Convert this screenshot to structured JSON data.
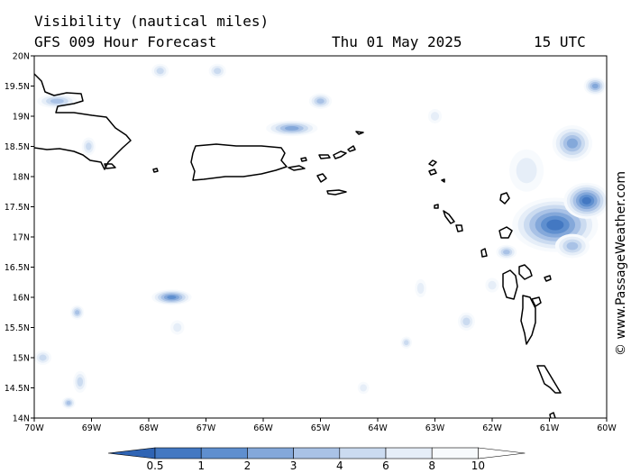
{
  "header": {
    "title": "Visibility (nautical miles)",
    "subtitle": "GFS 009 Hour Forecast",
    "date": "Thu 01 May 2025",
    "time": "15 UTC"
  },
  "credit": "© www.PassageWeather.com",
  "axes": {
    "lat_labels": [
      "20N",
      "19.5N",
      "19N",
      "18.5N",
      "18N",
      "17.5N",
      "17N",
      "16.5N",
      "16N",
      "15.5N",
      "15N",
      "14.5N",
      "14N"
    ],
    "lon_labels": [
      "70W",
      "69W",
      "68W",
      "67W",
      "66W",
      "65W",
      "64W",
      "63W",
      "62W",
      "61W",
      "60W"
    ],
    "lat_range": [
      14,
      20
    ],
    "lon_range": [
      -70,
      -60
    ]
  },
  "legend": {
    "labels": [
      "0.5",
      "1",
      "2",
      "3",
      "4",
      "6",
      "8",
      "10"
    ],
    "colors": [
      "#2f64b4",
      "#4378c2",
      "#5f8fcf",
      "#84a8da",
      "#a9c2e6",
      "#cbdbf0",
      "#e6eef8",
      "#f7fafd",
      "#ffffff"
    ]
  },
  "visibility_areas": [
    {
      "lon": -60.9,
      "lat": 17.2,
      "rx": 0.75,
      "ry": 0.45,
      "level": 1
    },
    {
      "lon": -60.35,
      "lat": 17.6,
      "rx": 0.4,
      "ry": 0.3,
      "level": 1
    },
    {
      "lon": -60.6,
      "lat": 18.55,
      "rx": 0.35,
      "ry": 0.3,
      "level": 3
    },
    {
      "lon": -60.2,
      "lat": 19.5,
      "rx": 0.2,
      "ry": 0.15,
      "level": 3
    },
    {
      "lon": -65.5,
      "lat": 18.8,
      "rx": 0.45,
      "ry": 0.13,
      "level": 3
    },
    {
      "lon": -65.0,
      "lat": 19.25,
      "rx": 0.2,
      "ry": 0.13,
      "level": 4
    },
    {
      "lon": -67.6,
      "lat": 16.0,
      "rx": 0.35,
      "ry": 0.13,
      "level": 2
    },
    {
      "lon": -61.75,
      "lat": 16.75,
      "rx": 0.18,
      "ry": 0.12,
      "level": 4
    },
    {
      "lon": -62.45,
      "lat": 15.6,
      "rx": 0.15,
      "ry": 0.15,
      "level": 5
    },
    {
      "lon": -69.25,
      "lat": 15.75,
      "rx": 0.12,
      "ry": 0.12,
      "level": 4
    },
    {
      "lon": -69.85,
      "lat": 15.0,
      "rx": 0.15,
      "ry": 0.12,
      "level": 5
    },
    {
      "lon": -69.4,
      "lat": 14.25,
      "rx": 0.12,
      "ry": 0.1,
      "level": 4
    },
    {
      "lon": -69.2,
      "lat": 14.6,
      "rx": 0.12,
      "ry": 0.18,
      "level": 5
    },
    {
      "lon": -67.8,
      "lat": 19.75,
      "rx": 0.15,
      "ry": 0.12,
      "level": 5
    },
    {
      "lon": -66.8,
      "lat": 19.75,
      "rx": 0.15,
      "ry": 0.12,
      "level": 5
    },
    {
      "lon": -69.05,
      "lat": 18.5,
      "rx": 0.12,
      "ry": 0.15,
      "level": 5
    },
    {
      "lon": -69.6,
      "lat": 19.25,
      "rx": 0.35,
      "ry": 0.12,
      "level": 4
    },
    {
      "lon": -63.0,
      "lat": 19.0,
      "rx": 0.12,
      "ry": 0.12,
      "level": 6
    },
    {
      "lon": -63.25,
      "lat": 16.15,
      "rx": 0.1,
      "ry": 0.15,
      "level": 6
    },
    {
      "lon": -67.5,
      "lat": 15.5,
      "rx": 0.12,
      "ry": 0.12,
      "level": 6
    },
    {
      "lon": -63.5,
      "lat": 15.25,
      "rx": 0.1,
      "ry": 0.1,
      "level": 5
    },
    {
      "lon": -64.25,
      "lat": 14.5,
      "rx": 0.1,
      "ry": 0.1,
      "level": 6
    },
    {
      "lon": -62.0,
      "lat": 16.2,
      "rx": 0.12,
      "ry": 0.12,
      "level": 6
    },
    {
      "lon": -61.4,
      "lat": 18.1,
      "rx": 0.3,
      "ry": 0.35,
      "level": 6
    },
    {
      "lon": -60.6,
      "lat": 16.85,
      "rx": 0.3,
      "ry": 0.2,
      "level": 4
    }
  ]
}
